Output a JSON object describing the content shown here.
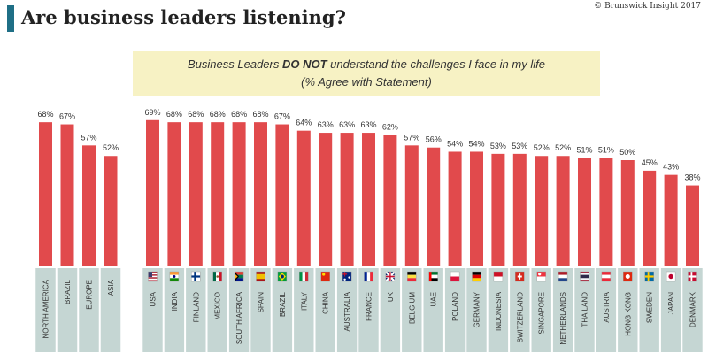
{
  "header": {
    "title": "Are business leaders listening?",
    "copyright": "© Brunswick Insight 2017",
    "accent_color": "#1f6f86"
  },
  "banner": {
    "line1_before": "Business Leaders ",
    "line1_bold": "DO NOT",
    "line1_after": " understand the challenges I face in my life",
    "line2": "(% Agree with Statement)",
    "background": "#f7f2c4"
  },
  "colors": {
    "bar": "#e14a4c",
    "label_panel": "#c5d6d3"
  },
  "chart_data": [
    {
      "type": "bar",
      "categories": [
        "NORTH AMERICA",
        "BRAZIL",
        "EUROPE",
        "ASIA"
      ],
      "values": [
        68,
        67,
        57,
        52
      ],
      "value_labels": [
        "68%",
        "67%",
        "57%",
        "52%"
      ],
      "ylim": [
        0,
        100
      ]
    },
    {
      "type": "bar",
      "categories": [
        "USA",
        "INDIA",
        "FINLAND",
        "MEXICO",
        "SOUTH AFRICA",
        "SPAIN",
        "BRAZIL",
        "ITALY",
        "CHINA",
        "AUSTRALIA",
        "FRANCE",
        "UK",
        "BELGIUM",
        "UAE",
        "POLAND",
        "GERMANY",
        "INDONESIA",
        "SWITZERLAND",
        "SINGAPORE",
        "NETHERLANDS",
        "THAILAND",
        "AUSTRIA",
        "HONG KONG",
        "SWEDEN",
        "JAPAN",
        "DENMARK"
      ],
      "values": [
        69,
        68,
        68,
        68,
        68,
        68,
        67,
        64,
        63,
        63,
        63,
        62,
        57,
        56,
        54,
        54,
        53,
        53,
        52,
        52,
        51,
        51,
        50,
        45,
        43,
        38
      ],
      "value_labels": [
        "69%",
        "68%",
        "68%",
        "68%",
        "68%",
        "68%",
        "67%",
        "64%",
        "63%",
        "63%",
        "63%",
        "62%",
        "57%",
        "56%",
        "54%",
        "54%",
        "53%",
        "53%",
        "52%",
        "52%",
        "51%",
        "51%",
        "50%",
        "45%",
        "43%",
        "38%"
      ],
      "flags": [
        "flag-usa-icon",
        "flag-india-icon",
        "flag-finland-icon",
        "flag-mexico-icon",
        "flag-south-africa-icon",
        "flag-spain-icon",
        "flag-brazil-icon",
        "flag-italy-icon",
        "flag-china-icon",
        "flag-australia-icon",
        "flag-france-icon",
        "flag-uk-icon",
        "flag-belgium-icon",
        "flag-uae-icon",
        "flag-poland-icon",
        "flag-germany-icon",
        "flag-indonesia-icon",
        "flag-switzerland-icon",
        "flag-singapore-icon",
        "flag-netherlands-icon",
        "flag-thailand-icon",
        "flag-austria-icon",
        "flag-hong-kong-icon",
        "flag-sweden-icon",
        "flag-japan-icon",
        "flag-denmark-icon"
      ],
      "ylim": [
        0,
        100
      ]
    }
  ]
}
